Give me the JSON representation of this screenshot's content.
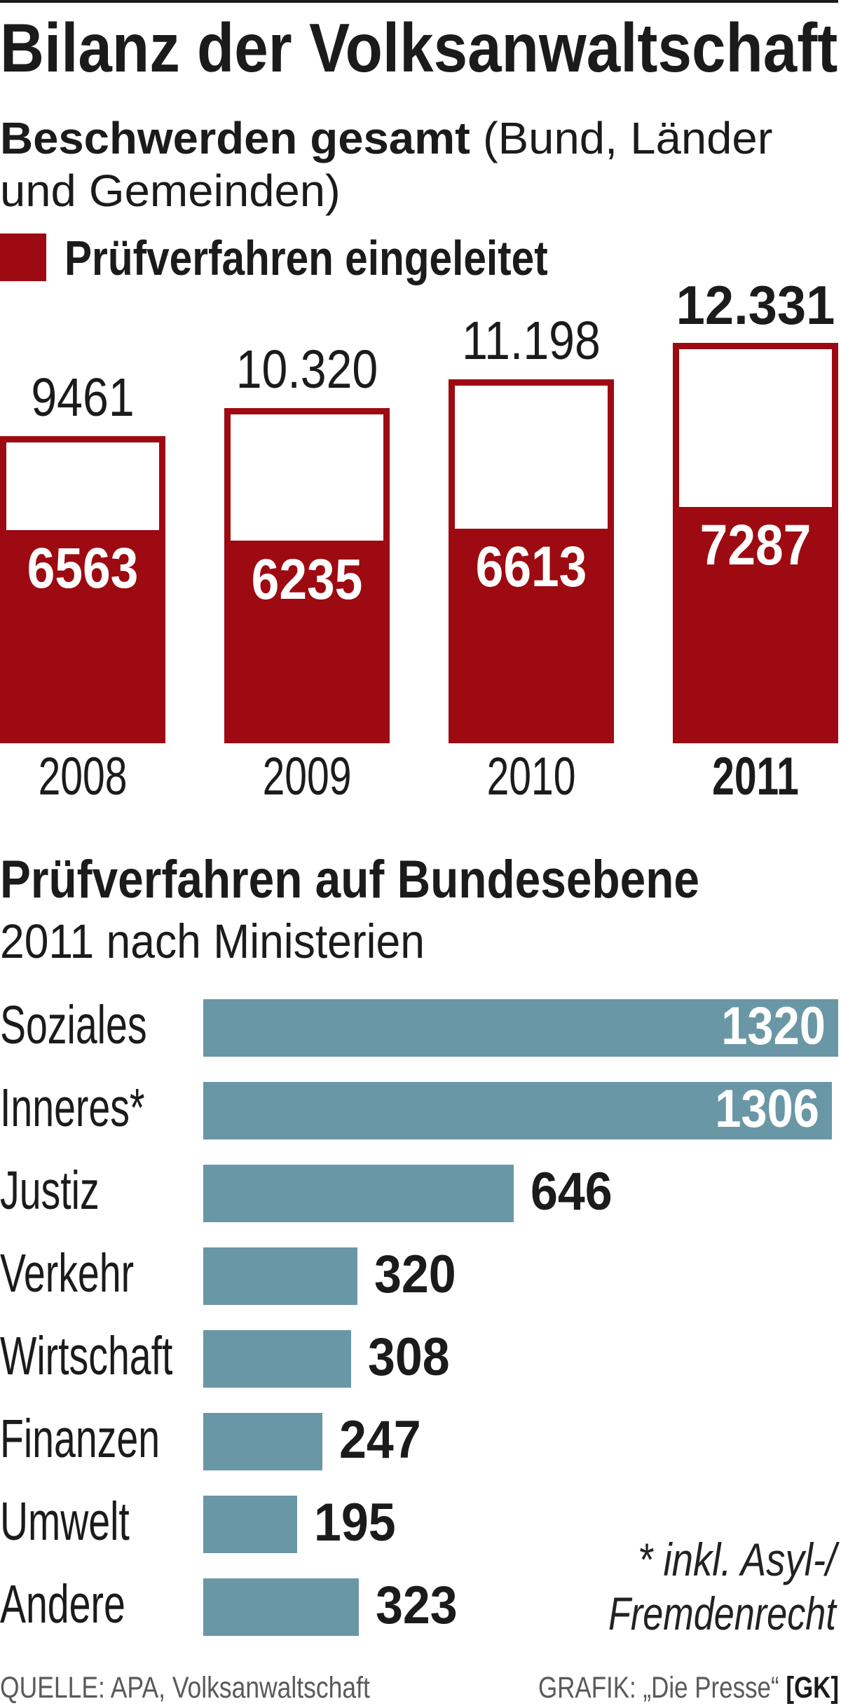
{
  "title": "Bilanz der Volksanwaltschaft",
  "chart_data": [
    {
      "type": "bar",
      "orientation": "vertical",
      "title": "Beschwerden gesamt",
      "subtitle_lines": [
        "(Bund, Länder",
        "und Gemeinden)"
      ],
      "legend": [
        {
          "name": "Prüfverfahren eingeleitet",
          "color": "#9e0a11"
        }
      ],
      "outline_color": "#9e0a11",
      "categories": [
        "2008",
        "2009",
        "2010",
        "2011"
      ],
      "highlight": "2011",
      "series": [
        {
          "name": "Beschwerden gesamt",
          "values": [
            9461,
            10320,
            11198,
            12331
          ],
          "labels": [
            "9461",
            "10.320",
            "11.198",
            "12.331"
          ]
        },
        {
          "name": "Prüfverfahren eingeleitet",
          "values": [
            6563,
            6235,
            6613,
            7287
          ],
          "labels": [
            "6563",
            "6235",
            "6613",
            "7287"
          ]
        }
      ],
      "xlabel": "",
      "ylabel": "",
      "grid": false
    },
    {
      "type": "bar",
      "orientation": "horizontal",
      "title": "Prüfverfahren auf Bundesebene",
      "subtitle": "2011 nach Ministerien",
      "categories": [
        "Soziales",
        "Inneres*",
        "Justiz",
        "Verkehr",
        "Wirtschaft",
        "Finanzen",
        "Umwelt",
        "Andere"
      ],
      "values": [
        1320,
        1306,
        646,
        320,
        308,
        247,
        195,
        323
      ],
      "color": "#6a97a6",
      "footnote": [
        "* inkl. Asyl-/",
        "Fremdenrecht"
      ],
      "xlabel": "",
      "ylabel": "",
      "grid": false
    }
  ],
  "footer": {
    "source": "QUELLE: APA, Volksanwaltschaft",
    "credit": "GRAFIK: „Die Presse“",
    "credit_tag": "[GK]"
  }
}
